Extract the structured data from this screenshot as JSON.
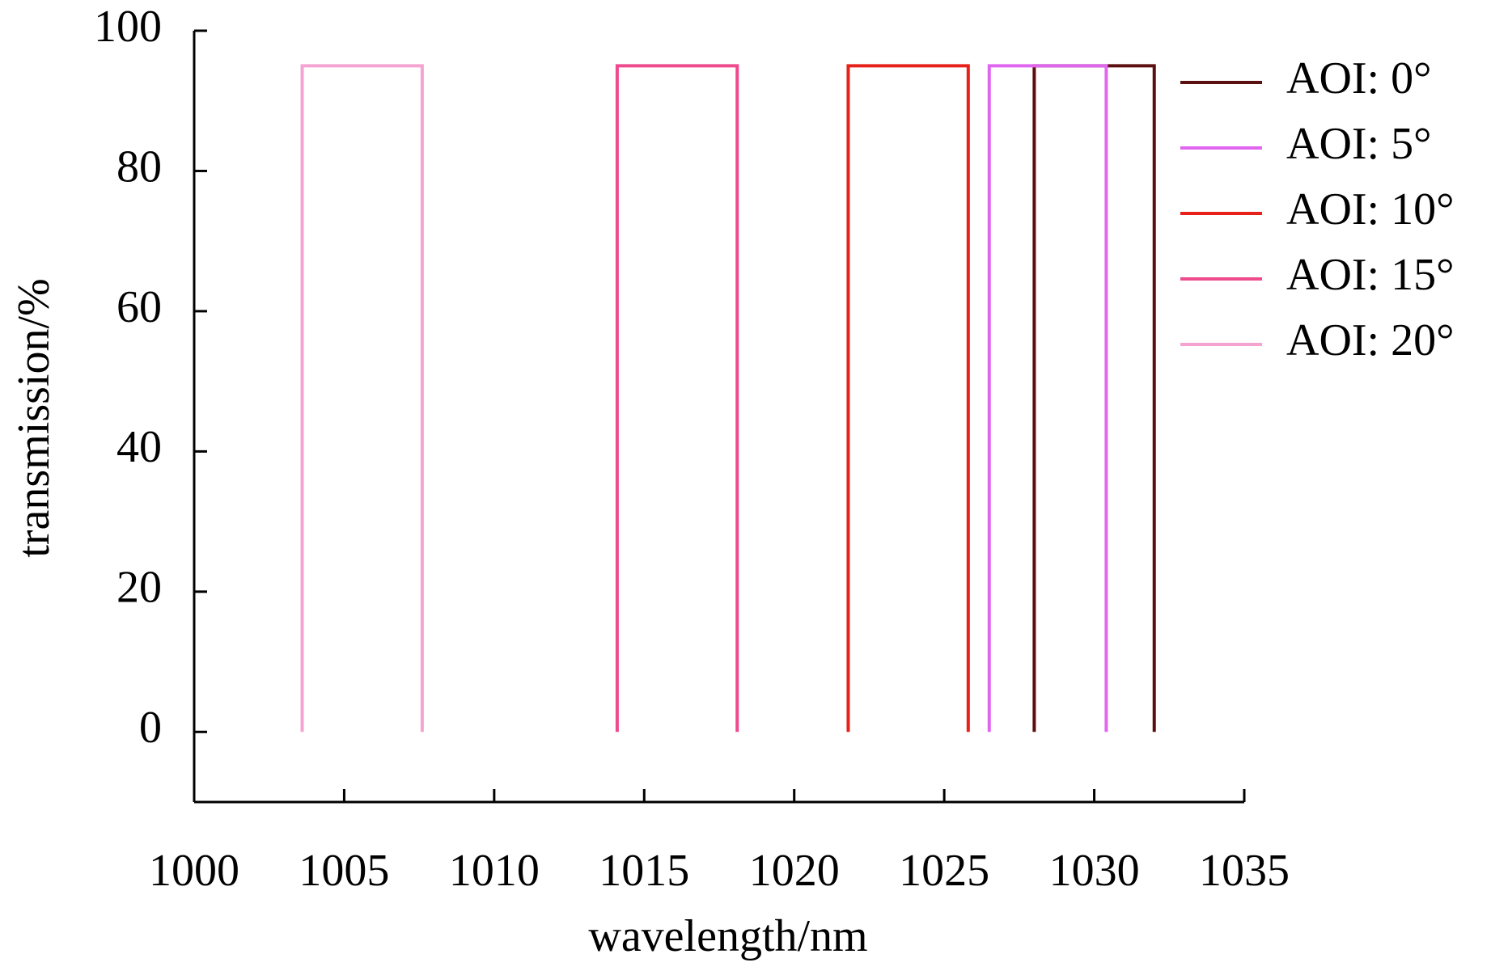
{
  "chart_data": {
    "type": "line",
    "xlabel": "wavelength/nm",
    "ylabel": "transmission/%",
    "xlim": [
      1000,
      1035
    ],
    "xticks": [
      1000,
      1005,
      1010,
      1015,
      1020,
      1025,
      1030,
      1035
    ],
    "ylim": [
      -10,
      100
    ],
    "yticks": [
      0,
      20,
      40,
      60,
      80,
      100
    ],
    "grid": false,
    "legend": "upper right",
    "series": [
      {
        "name": "AOI: 0°",
        "color": "#5c0f0f",
        "x": [
          1028.0,
          1028.0,
          1032.0,
          1032.0
        ],
        "values": [
          0,
          95,
          95,
          0
        ]
      },
      {
        "name": "AOI: 5°",
        "color": "#e066f0",
        "x": [
          1026.5,
          1026.5,
          1030.4,
          1030.4
        ],
        "values": [
          0,
          95,
          95,
          0
        ]
      },
      {
        "name": "AOI: 10°",
        "color": "#e8201a",
        "x": [
          1021.8,
          1021.8,
          1025.8,
          1025.8
        ],
        "values": [
          0,
          95,
          95,
          0
        ]
      },
      {
        "name": "AOI: 15°",
        "color": "#ee4a8c",
        "x": [
          1014.1,
          1014.1,
          1018.1,
          1018.1
        ],
        "values": [
          0,
          95,
          95,
          0
        ]
      },
      {
        "name": "AOI: 20°",
        "color": "#f5a3d0",
        "x": [
          1003.6,
          1003.6,
          1007.6,
          1007.6
        ],
        "values": [
          0,
          95,
          95,
          0
        ]
      }
    ]
  }
}
